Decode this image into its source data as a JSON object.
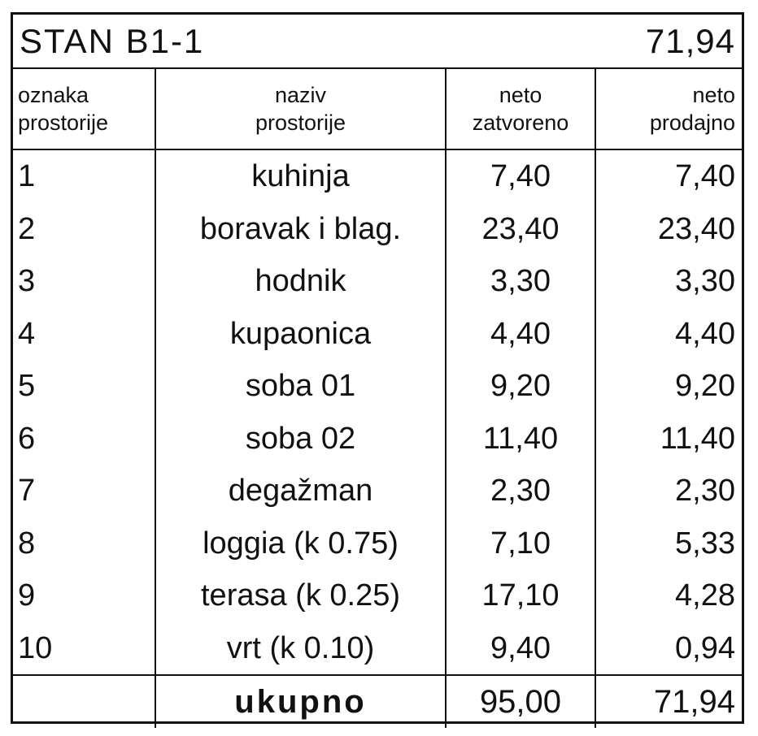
{
  "title": {
    "apartment": "STAN B1-1",
    "total": "71,94"
  },
  "header": {
    "col1": [
      "oznaka",
      "prostorije"
    ],
    "col2": [
      "naziv",
      "prostorije"
    ],
    "col3": [
      "neto",
      "zatvoreno"
    ],
    "col4": [
      "neto",
      "prodajno"
    ]
  },
  "rows": [
    {
      "id": "1",
      "name": "kuhinja",
      "net_closed": "7,40",
      "net_sale": "7,40"
    },
    {
      "id": "2",
      "name": "boravak i blag.",
      "net_closed": "23,40",
      "net_sale": "23,40"
    },
    {
      "id": "3",
      "name": "hodnik",
      "net_closed": "3,30",
      "net_sale": "3,30"
    },
    {
      "id": "4",
      "name": "kupaonica",
      "net_closed": "4,40",
      "net_sale": "4,40"
    },
    {
      "id": "5",
      "name": "soba 01",
      "net_closed": "9,20",
      "net_sale": "9,20"
    },
    {
      "id": "6",
      "name": "soba 02",
      "net_closed": "11,40",
      "net_sale": "11,40"
    },
    {
      "id": "7",
      "name": "degažman",
      "net_closed": "2,30",
      "net_sale": "2,30"
    },
    {
      "id": "8",
      "name": "loggia (k 0.75)",
      "net_closed": "7,10",
      "net_sale": "5,33"
    },
    {
      "id": "9",
      "name": "terasa (k 0.25)",
      "net_closed": "17,10",
      "net_sale": "4,28"
    },
    {
      "id": "10",
      "name": "vrt (k 0.10)",
      "net_closed": "9,40",
      "net_sale": "0,94"
    }
  ],
  "footer": {
    "label": "ukupno",
    "net_closed": "95,00",
    "net_sale": "71,94"
  }
}
